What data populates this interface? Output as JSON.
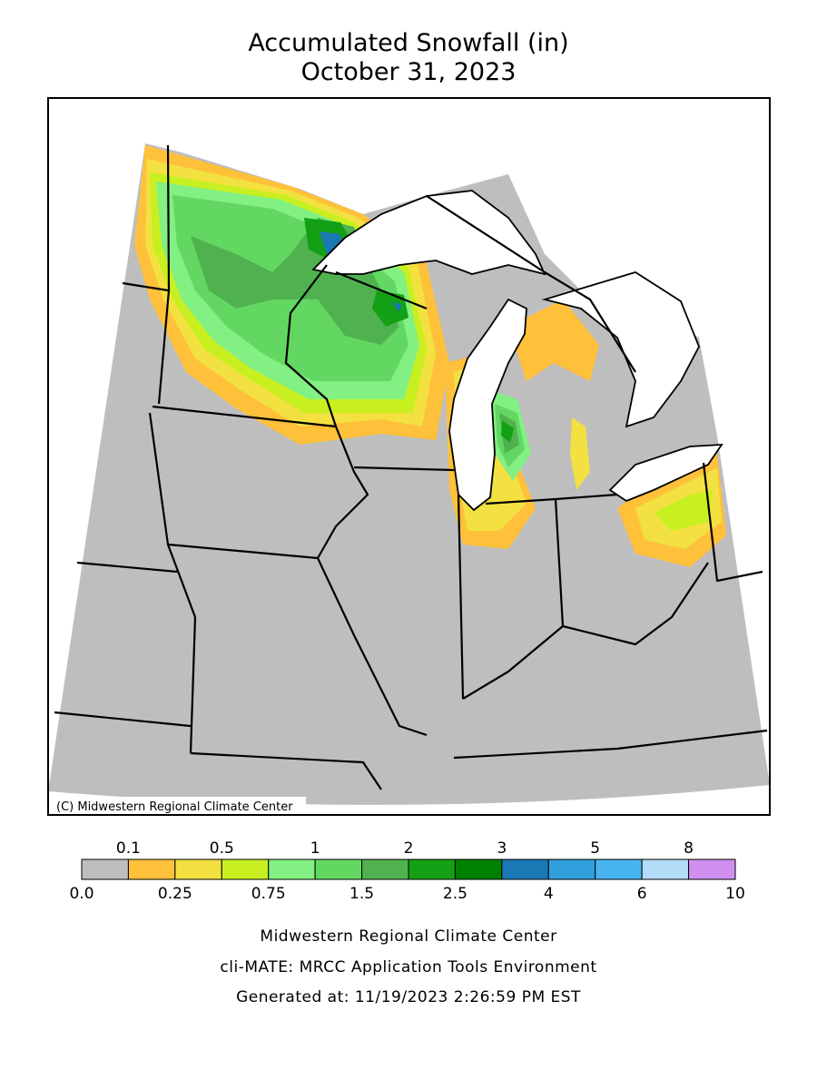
{
  "title": [
    "Accumulated Snowfall (in)",
    "October 31, 2023"
  ],
  "copyright": "(C) Midwestern Regional Climate Center",
  "legend": {
    "bounds": [
      {
        "value": 0,
        "label": "0.0"
      },
      0.1,
      0.25,
      0.5,
      0.75,
      1,
      1.5,
      2,
      2.5,
      3,
      4,
      5,
      6,
      8,
      10
    ],
    "colors": [
      "#bebebe",
      "#ffc03a",
      "#f2e140",
      "#c8f020",
      "#82f082",
      "#62d862",
      "#4fb24f",
      "#14a014",
      "#008000",
      "#1a78b4",
      "#30a0dc",
      "#48b4f0",
      "#b4dcf8",
      "#d090f0"
    ]
  },
  "footer": [
    "Midwestern Regional Climate Center",
    "cli-MATE: MRCC Application Tools Environment",
    "Generated at: 11/19/2023 2:26:59 PM EST"
  ]
}
